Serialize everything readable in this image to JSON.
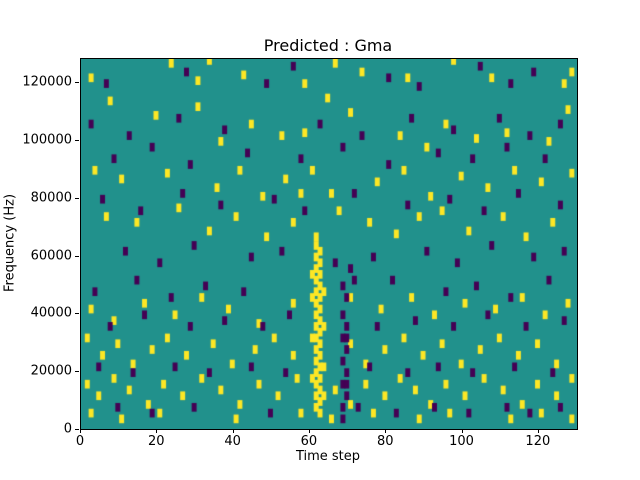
{
  "chart_data": {
    "type": "heatmap",
    "title": "Predicted : Gma",
    "xlabel": "Time step",
    "ylabel": "Frequency (Hz)",
    "xlim": [
      0,
      130
    ],
    "ylim": [
      0,
      128000
    ],
    "xticks": [
      0,
      20,
      40,
      60,
      80,
      100,
      120
    ],
    "yticks": [
      0,
      20000,
      40000,
      60000,
      80000,
      100000,
      120000
    ],
    "colormap": "viridis",
    "grid": false,
    "legend": "none",
    "colors": {
      "background": "#21918c",
      "high": "#fde725",
      "low": "#440154",
      "figure_bg": "#ffffff",
      "text": "#000000"
    },
    "cell_width_steps": 1.3,
    "cell_height_khz": 3,
    "cells_note": "cells are [time_step, frequency_kHz]; high=yellow, low=dark-purple; remaining field is mid-teal background",
    "yellow_cells": [
      [
        2,
        120
      ],
      [
        23,
        125
      ],
      [
        30,
        119
      ],
      [
        33,
        126
      ],
      [
        42,
        121
      ],
      [
        58,
        118
      ],
      [
        66,
        125
      ],
      [
        73,
        122
      ],
      [
        97,
        126
      ],
      [
        107,
        120
      ],
      [
        126,
        118
      ],
      [
        128,
        122
      ],
      [
        85,
        120
      ],
      [
        7,
        112
      ],
      [
        19,
        107
      ],
      [
        30,
        110
      ],
      [
        44,
        104
      ],
      [
        52,
        100
      ],
      [
        58,
        101
      ],
      [
        64,
        113
      ],
      [
        70,
        108
      ],
      [
        83,
        100
      ],
      [
        90,
        96
      ],
      [
        95,
        104
      ],
      [
        103,
        99
      ],
      [
        122,
        98
      ],
      [
        127,
        109
      ],
      [
        36,
        98
      ],
      [
        111,
        101
      ],
      [
        3,
        88
      ],
      [
        10,
        85
      ],
      [
        22,
        87
      ],
      [
        35,
        82
      ],
      [
        41,
        88
      ],
      [
        47,
        79
      ],
      [
        53,
        85
      ],
      [
        60,
        88
      ],
      [
        65,
        80
      ],
      [
        77,
        84
      ],
      [
        84,
        88
      ],
      [
        91,
        79
      ],
      [
        99,
        86
      ],
      [
        106,
        82
      ],
      [
        113,
        88
      ],
      [
        120,
        84
      ],
      [
        128,
        87
      ],
      [
        57,
        80
      ],
      [
        6,
        72
      ],
      [
        14,
        70
      ],
      [
        25,
        75
      ],
      [
        33,
        67
      ],
      [
        40,
        72
      ],
      [
        48,
        65
      ],
      [
        55,
        70
      ],
      [
        61,
        65
      ],
      [
        67,
        74
      ],
      [
        75,
        70
      ],
      [
        82,
        66
      ],
      [
        88,
        72
      ],
      [
        101,
        67
      ],
      [
        110,
        72
      ],
      [
        116,
        65
      ],
      [
        123,
        70
      ],
      [
        94,
        74
      ],
      [
        61,
        62
      ],
      [
        62,
        60
      ],
      [
        61,
        58
      ],
      [
        62,
        56
      ],
      [
        61,
        54
      ],
      [
        62,
        52
      ],
      [
        61,
        50
      ],
      [
        62,
        48
      ],
      [
        61,
        46
      ],
      [
        62,
        44
      ],
      [
        63,
        46
      ],
      [
        60,
        44
      ],
      [
        61,
        42
      ],
      [
        62,
        40
      ],
      [
        61,
        38
      ],
      [
        62,
        36
      ],
      [
        61,
        34
      ],
      [
        62,
        32
      ],
      [
        61,
        30
      ],
      [
        62,
        28
      ],
      [
        61,
        26
      ],
      [
        62,
        24
      ],
      [
        61,
        22
      ],
      [
        62,
        20
      ],
      [
        61,
        18
      ],
      [
        62,
        16
      ],
      [
        61,
        14
      ],
      [
        62,
        12
      ],
      [
        61,
        10
      ],
      [
        62,
        8
      ],
      [
        61,
        6
      ],
      [
        62,
        4
      ],
      [
        63,
        10
      ],
      [
        63,
        20
      ],
      [
        60,
        30
      ],
      [
        60,
        16
      ],
      [
        63,
        34
      ],
      [
        60,
        52
      ],
      [
        2,
        40
      ],
      [
        8,
        36
      ],
      [
        16,
        42
      ],
      [
        24,
        38
      ],
      [
        31,
        44
      ],
      [
        38,
        40
      ],
      [
        46,
        35
      ],
      [
        70,
        44
      ],
      [
        78,
        40
      ],
      [
        86,
        44
      ],
      [
        92,
        38
      ],
      [
        100,
        42
      ],
      [
        108,
        40
      ],
      [
        115,
        44
      ],
      [
        121,
        38
      ],
      [
        127,
        42
      ],
      [
        55,
        42
      ],
      [
        1,
        30
      ],
      [
        5,
        24
      ],
      [
        9,
        28
      ],
      [
        13,
        21
      ],
      [
        18,
        26
      ],
      [
        22,
        30
      ],
      [
        27,
        24
      ],
      [
        34,
        28
      ],
      [
        39,
        21
      ],
      [
        45,
        26
      ],
      [
        50,
        30
      ],
      [
        55,
        24
      ],
      [
        70,
        28
      ],
      [
        74,
        21
      ],
      [
        79,
        26
      ],
      [
        84,
        30
      ],
      [
        89,
        24
      ],
      [
        94,
        28
      ],
      [
        99,
        21
      ],
      [
        104,
        26
      ],
      [
        109,
        30
      ],
      [
        114,
        24
      ],
      [
        119,
        28
      ],
      [
        124,
        21
      ],
      [
        1,
        14
      ],
      [
        4,
        10
      ],
      [
        8,
        16
      ],
      [
        12,
        12
      ],
      [
        17,
        7
      ],
      [
        21,
        14
      ],
      [
        26,
        10
      ],
      [
        31,
        16
      ],
      [
        36,
        12
      ],
      [
        41,
        7
      ],
      [
        46,
        14
      ],
      [
        51,
        10
      ],
      [
        56,
        16
      ],
      [
        66,
        12
      ],
      [
        70,
        7
      ],
      [
        74,
        14
      ],
      [
        79,
        10
      ],
      [
        83,
        16
      ],
      [
        87,
        12
      ],
      [
        91,
        7
      ],
      [
        95,
        14
      ],
      [
        100,
        10
      ],
      [
        105,
        16
      ],
      [
        110,
        12
      ],
      [
        115,
        7
      ],
      [
        119,
        14
      ],
      [
        124,
        10
      ],
      [
        128,
        16
      ],
      [
        2,
        4
      ],
      [
        10,
        2
      ],
      [
        20,
        4
      ],
      [
        40,
        2
      ],
      [
        57,
        4
      ],
      [
        65,
        2
      ],
      [
        76,
        4
      ],
      [
        88,
        2
      ],
      [
        96,
        4
      ],
      [
        112,
        2
      ],
      [
        120,
        4
      ],
      [
        128,
        2
      ]
    ],
    "purple_cells": [
      [
        6,
        118
      ],
      [
        27,
        122
      ],
      [
        48,
        118
      ],
      [
        55,
        124
      ],
      [
        80,
        120
      ],
      [
        88,
        117
      ],
      [
        104,
        124
      ],
      [
        112,
        118
      ],
      [
        118,
        122
      ],
      [
        2,
        104
      ],
      [
        12,
        100
      ],
      [
        25,
        106
      ],
      [
        37,
        102
      ],
      [
        62,
        104
      ],
      [
        73,
        100
      ],
      [
        86,
        106
      ],
      [
        97,
        102
      ],
      [
        109,
        106
      ],
      [
        117,
        100
      ],
      [
        125,
        104
      ],
      [
        8,
        92
      ],
      [
        18,
        96
      ],
      [
        28,
        90
      ],
      [
        43,
        94
      ],
      [
        57,
        92
      ],
      [
        68,
        96
      ],
      [
        80,
        90
      ],
      [
        93,
        94
      ],
      [
        102,
        92
      ],
      [
        111,
        96
      ],
      [
        121,
        92
      ],
      [
        5,
        78
      ],
      [
        15,
        74
      ],
      [
        26,
        80
      ],
      [
        36,
        76
      ],
      [
        50,
        78
      ],
      [
        58,
        74
      ],
      [
        71,
        80
      ],
      [
        85,
        76
      ],
      [
        96,
        78
      ],
      [
        105,
        74
      ],
      [
        114,
        80
      ],
      [
        125,
        76
      ],
      [
        11,
        60
      ],
      [
        20,
        56
      ],
      [
        29,
        62
      ],
      [
        44,
        58
      ],
      [
        52,
        60
      ],
      [
        66,
        56
      ],
      [
        70,
        54
      ],
      [
        71,
        50
      ],
      [
        76,
        58
      ],
      [
        90,
        60
      ],
      [
        98,
        56
      ],
      [
        107,
        62
      ],
      [
        118,
        58
      ],
      [
        126,
        60
      ],
      [
        3,
        46
      ],
      [
        14,
        50
      ],
      [
        23,
        44
      ],
      [
        32,
        48
      ],
      [
        42,
        46
      ],
      [
        68,
        48
      ],
      [
        69,
        44
      ],
      [
        81,
        50
      ],
      [
        95,
        46
      ],
      [
        103,
        48
      ],
      [
        112,
        44
      ],
      [
        122,
        50
      ],
      [
        68,
        38
      ],
      [
        69,
        34
      ],
      [
        68,
        30
      ],
      [
        69,
        26
      ],
      [
        68,
        22
      ],
      [
        69,
        18
      ],
      [
        68,
        14
      ],
      [
        69,
        10
      ],
      [
        68,
        6
      ],
      [
        68,
        2
      ],
      [
        69,
        30
      ],
      [
        69,
        14
      ],
      [
        7,
        34
      ],
      [
        16,
        38
      ],
      [
        28,
        34
      ],
      [
        37,
        36
      ],
      [
        47,
        34
      ],
      [
        54,
        38
      ],
      [
        77,
        34
      ],
      [
        87,
        36
      ],
      [
        97,
        34
      ],
      [
        106,
        38
      ],
      [
        116,
        34
      ],
      [
        126,
        36
      ],
      [
        4,
        20
      ],
      [
        13,
        18
      ],
      [
        24,
        20
      ],
      [
        33,
        18
      ],
      [
        44,
        20
      ],
      [
        53,
        18
      ],
      [
        75,
        20
      ],
      [
        85,
        18
      ],
      [
        93,
        20
      ],
      [
        102,
        18
      ],
      [
        113,
        20
      ],
      [
        123,
        18
      ],
      [
        9,
        6
      ],
      [
        18,
        4
      ],
      [
        29,
        6
      ],
      [
        49,
        4
      ],
      [
        72,
        6
      ],
      [
        82,
        4
      ],
      [
        92,
        6
      ],
      [
        101,
        4
      ],
      [
        111,
        6
      ],
      [
        117,
        4
      ],
      [
        125,
        6
      ]
    ]
  }
}
